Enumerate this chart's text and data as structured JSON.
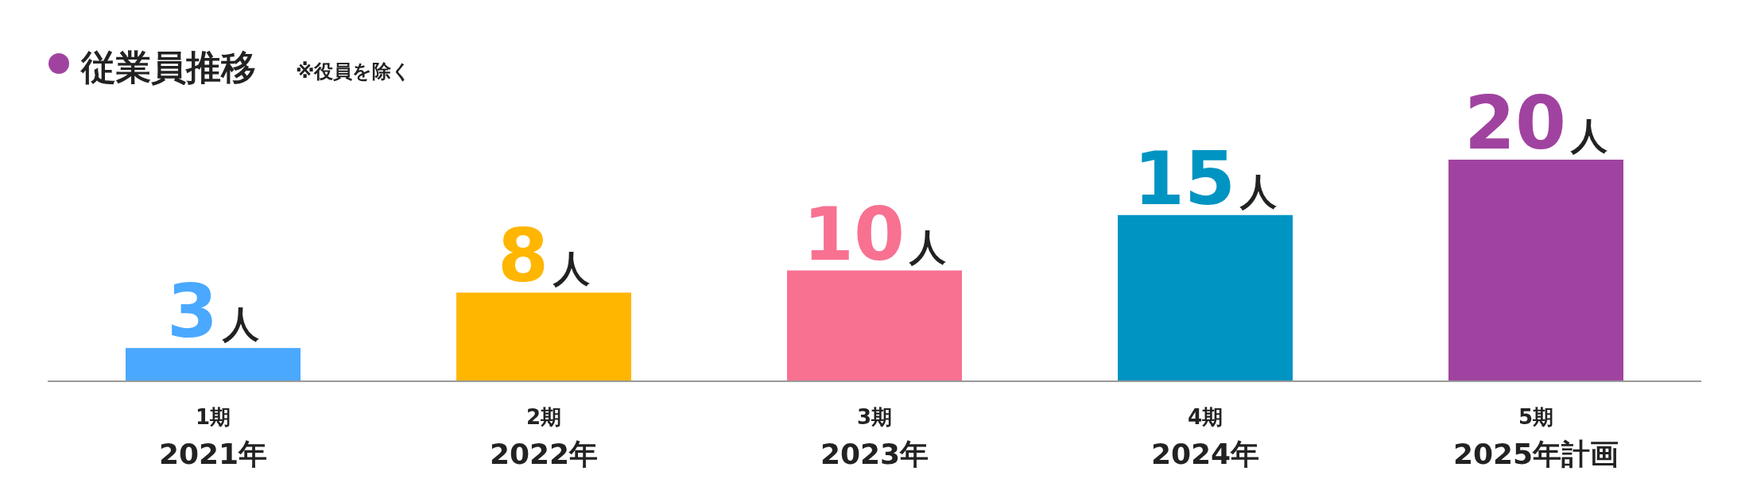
{
  "chart_data": {
    "type": "bar",
    "title": "従業員推移",
    "subtitle": "※役員を除く",
    "categories": [
      "1期\n2021年",
      "2期\n2022年",
      "3期\n2023年",
      "4期\n2024年",
      "5期\n2025年計画"
    ],
    "values": [
      3,
      8,
      10,
      15,
      20
    ],
    "colors": [
      "#4aa8ff",
      "#ffb600",
      "#f87191",
      "#0094c2",
      "#a043a0"
    ],
    "value_labels": [
      "3人",
      "8人",
      "10人",
      "15人",
      "20人"
    ]
  }
}
